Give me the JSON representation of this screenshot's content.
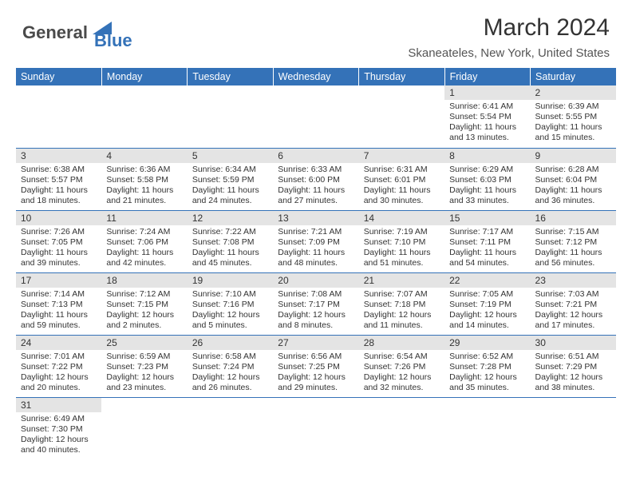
{
  "logo": {
    "general": "General",
    "blue": "Blue",
    "shape_color": "#3472b8"
  },
  "title": "March 2024",
  "location": "Skaneateles, New York, United States",
  "weekdays": [
    "Sunday",
    "Monday",
    "Tuesday",
    "Wednesday",
    "Thursday",
    "Friday",
    "Saturday"
  ],
  "colors": {
    "header_bg": "#3472b8",
    "header_fg": "#ffffff",
    "daynum_bg": "#e4e4e4",
    "text": "#333333",
    "row_border": "#3472b8"
  },
  "fonts": {
    "title_size_pt": 22,
    "location_size_pt": 11,
    "weekday_size_pt": 9,
    "daynum_size_pt": 9,
    "body_size_pt": 8
  },
  "weeks": [
    [
      null,
      null,
      null,
      null,
      null,
      {
        "n": "1",
        "sunrise": "6:41 AM",
        "sunset": "5:54 PM",
        "daylight": "11 hours and 13 minutes."
      },
      {
        "n": "2",
        "sunrise": "6:39 AM",
        "sunset": "5:55 PM",
        "daylight": "11 hours and 15 minutes."
      }
    ],
    [
      {
        "n": "3",
        "sunrise": "6:38 AM",
        "sunset": "5:57 PM",
        "daylight": "11 hours and 18 minutes."
      },
      {
        "n": "4",
        "sunrise": "6:36 AM",
        "sunset": "5:58 PM",
        "daylight": "11 hours and 21 minutes."
      },
      {
        "n": "5",
        "sunrise": "6:34 AM",
        "sunset": "5:59 PM",
        "daylight": "11 hours and 24 minutes."
      },
      {
        "n": "6",
        "sunrise": "6:33 AM",
        "sunset": "6:00 PM",
        "daylight": "11 hours and 27 minutes."
      },
      {
        "n": "7",
        "sunrise": "6:31 AM",
        "sunset": "6:01 PM",
        "daylight": "11 hours and 30 minutes."
      },
      {
        "n": "8",
        "sunrise": "6:29 AM",
        "sunset": "6:03 PM",
        "daylight": "11 hours and 33 minutes."
      },
      {
        "n": "9",
        "sunrise": "6:28 AM",
        "sunset": "6:04 PM",
        "daylight": "11 hours and 36 minutes."
      }
    ],
    [
      {
        "n": "10",
        "sunrise": "7:26 AM",
        "sunset": "7:05 PM",
        "daylight": "11 hours and 39 minutes."
      },
      {
        "n": "11",
        "sunrise": "7:24 AM",
        "sunset": "7:06 PM",
        "daylight": "11 hours and 42 minutes."
      },
      {
        "n": "12",
        "sunrise": "7:22 AM",
        "sunset": "7:08 PM",
        "daylight": "11 hours and 45 minutes."
      },
      {
        "n": "13",
        "sunrise": "7:21 AM",
        "sunset": "7:09 PM",
        "daylight": "11 hours and 48 minutes."
      },
      {
        "n": "14",
        "sunrise": "7:19 AM",
        "sunset": "7:10 PM",
        "daylight": "11 hours and 51 minutes."
      },
      {
        "n": "15",
        "sunrise": "7:17 AM",
        "sunset": "7:11 PM",
        "daylight": "11 hours and 54 minutes."
      },
      {
        "n": "16",
        "sunrise": "7:15 AM",
        "sunset": "7:12 PM",
        "daylight": "11 hours and 56 minutes."
      }
    ],
    [
      {
        "n": "17",
        "sunrise": "7:14 AM",
        "sunset": "7:13 PM",
        "daylight": "11 hours and 59 minutes."
      },
      {
        "n": "18",
        "sunrise": "7:12 AM",
        "sunset": "7:15 PM",
        "daylight": "12 hours and 2 minutes."
      },
      {
        "n": "19",
        "sunrise": "7:10 AM",
        "sunset": "7:16 PM",
        "daylight": "12 hours and 5 minutes."
      },
      {
        "n": "20",
        "sunrise": "7:08 AM",
        "sunset": "7:17 PM",
        "daylight": "12 hours and 8 minutes."
      },
      {
        "n": "21",
        "sunrise": "7:07 AM",
        "sunset": "7:18 PM",
        "daylight": "12 hours and 11 minutes."
      },
      {
        "n": "22",
        "sunrise": "7:05 AM",
        "sunset": "7:19 PM",
        "daylight": "12 hours and 14 minutes."
      },
      {
        "n": "23",
        "sunrise": "7:03 AM",
        "sunset": "7:21 PM",
        "daylight": "12 hours and 17 minutes."
      }
    ],
    [
      {
        "n": "24",
        "sunrise": "7:01 AM",
        "sunset": "7:22 PM",
        "daylight": "12 hours and 20 minutes."
      },
      {
        "n": "25",
        "sunrise": "6:59 AM",
        "sunset": "7:23 PM",
        "daylight": "12 hours and 23 minutes."
      },
      {
        "n": "26",
        "sunrise": "6:58 AM",
        "sunset": "7:24 PM",
        "daylight": "12 hours and 26 minutes."
      },
      {
        "n": "27",
        "sunrise": "6:56 AM",
        "sunset": "7:25 PM",
        "daylight": "12 hours and 29 minutes."
      },
      {
        "n": "28",
        "sunrise": "6:54 AM",
        "sunset": "7:26 PM",
        "daylight": "12 hours and 32 minutes."
      },
      {
        "n": "29",
        "sunrise": "6:52 AM",
        "sunset": "7:28 PM",
        "daylight": "12 hours and 35 minutes."
      },
      {
        "n": "30",
        "sunrise": "6:51 AM",
        "sunset": "7:29 PM",
        "daylight": "12 hours and 38 minutes."
      }
    ],
    [
      {
        "n": "31",
        "sunrise": "6:49 AM",
        "sunset": "7:30 PM",
        "daylight": "12 hours and 40 minutes."
      },
      null,
      null,
      null,
      null,
      null,
      null
    ]
  ],
  "labels": {
    "sunrise": "Sunrise:",
    "sunset": "Sunset:",
    "daylight": "Daylight:"
  }
}
